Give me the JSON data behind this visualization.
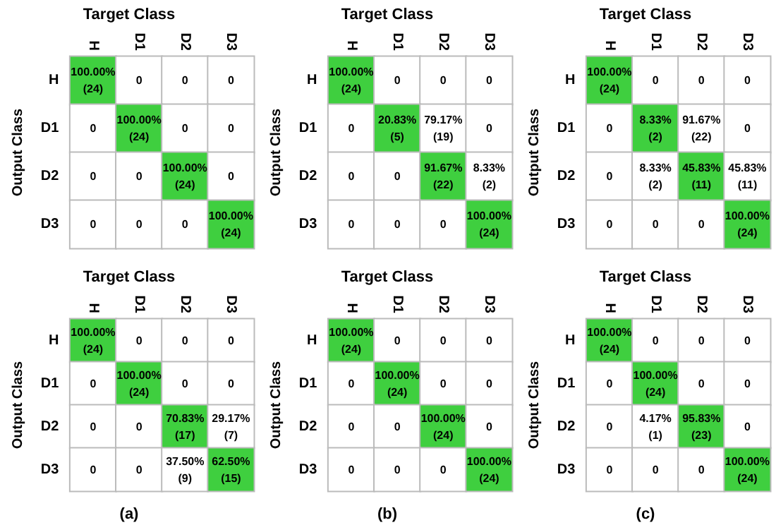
{
  "chart_data": [
    {
      "type": "heatmap",
      "title": "Target Class",
      "ylabel": "Output Class",
      "categories": [
        "H",
        "D1",
        "D2",
        "D3"
      ],
      "y_categories": [
        "H",
        "D1",
        "D2",
        "D3"
      ],
      "color": "#3fcf3f",
      "cells": [
        [
          100,
          0,
          0,
          0
        ],
        [
          0,
          100,
          0,
          0
        ],
        [
          0,
          0,
          100,
          0
        ],
        [
          0,
          0,
          0,
          100
        ]
      ],
      "cell_labels": [
        [
          "100.00%",
          "0",
          "0",
          "0"
        ],
        [
          "0",
          "100.00%",
          "0",
          "0"
        ],
        [
          "0",
          "0",
          "100.00%",
          "0"
        ],
        [
          "0",
          "0",
          "0",
          "100.00%"
        ]
      ],
      "annotations": [
        "(24)",
        "(24)",
        "(24)",
        "(24)"
      ]
    },
    {
      "type": "heatmap",
      "title": "Target Class",
      "ylabel": "Output Class",
      "categories": [
        "H",
        "D1",
        "D2",
        "D3"
      ],
      "y_categories": [
        "H",
        "D1",
        "D2",
        "D3"
      ],
      "color": "#3fcf3f",
      "cells": [
        [
          100,
          0,
          0,
          0
        ],
        [
          0,
          20.83,
          79.17,
          0
        ],
        [
          0,
          0,
          91.67,
          8.33
        ],
        [
          0,
          0,
          0,
          100
        ]
      ],
      "cell_labels": [
        [
          "100.00%",
          "0",
          "0",
          "0"
        ],
        [
          "0",
          "20.83%",
          "79.17%",
          "0"
        ],
        [
          "0",
          "0",
          "91.67%",
          "8.33%"
        ],
        [
          "0",
          "0",
          "0",
          "100.00%"
        ]
      ],
      "annotations": [
        "(24)",
        "(5)",
        "(19)",
        "(22)",
        "(2)",
        "(24)"
      ]
    },
    {
      "type": "heatmap",
      "title": "Target Class",
      "ylabel": "Output Class",
      "categories": [
        "H",
        "D1",
        "D2",
        "D3"
      ],
      "y_categories": [
        "H",
        "D1",
        "D2",
        "D3"
      ],
      "color": "#3fcf3f",
      "cells": [
        [
          100,
          0,
          0,
          0
        ],
        [
          0,
          8.33,
          91.67,
          0
        ],
        [
          0,
          8.33,
          45.83,
          45.83
        ],
        [
          0,
          0,
          0,
          100
        ]
      ],
      "cell_labels": [
        [
          "100.00%",
          "0",
          "0",
          "0"
        ],
        [
          "0",
          "8.33%",
          "91.67%",
          "0"
        ],
        [
          "0",
          "8.33%",
          "45.83%",
          "45.83%"
        ],
        [
          "0",
          "0",
          "0",
          "100.00%"
        ]
      ],
      "annotations": [
        "(24)",
        "(2)",
        "(22)",
        "(2)",
        "(11)",
        "(11)",
        "(24)"
      ]
    },
    {
      "type": "heatmap",
      "title": "Target Class",
      "ylabel": "Output Class",
      "categories": [
        "H",
        "D1",
        "D2",
        "D3"
      ],
      "y_categories": [
        "H",
        "D1",
        "D2",
        "D3"
      ],
      "color": "#3fcf3f",
      "cells": [
        [
          100,
          0,
          0,
          0
        ],
        [
          0,
          100,
          0,
          0
        ],
        [
          0,
          0,
          70.83,
          29.17
        ],
        [
          0,
          0,
          37.5,
          62.5
        ]
      ],
      "cell_labels": [
        [
          "100.00%",
          "0",
          "0",
          "0"
        ],
        [
          "0",
          "100.00%",
          "0",
          "0"
        ],
        [
          "0",
          "0",
          "70.83%",
          "29.17%"
        ],
        [
          "0",
          "0",
          "37.50%",
          "62.50%"
        ]
      ],
      "annotations": [
        "(24)",
        "(24)",
        "(17)",
        "(7)",
        "(9)",
        "(15)",
        "(a)"
      ]
    },
    {
      "type": "heatmap",
      "title": "Target Class",
      "ylabel": "Output Class",
      "categories": [
        "H",
        "D1",
        "D2",
        "D3"
      ],
      "y_categories": [
        "H",
        "D1",
        "D2",
        "D3"
      ],
      "color": "#3fcf3f",
      "cells": [
        [
          100,
          0,
          0,
          0
        ],
        [
          0,
          100,
          0,
          0
        ],
        [
          0,
          0,
          100,
          0
        ],
        [
          0,
          0,
          0,
          100
        ]
      ],
      "cell_labels": [
        [
          "100.00%",
          "0",
          "0",
          "0"
        ],
        [
          "0",
          "100.00%",
          "0",
          "0"
        ],
        [
          "0",
          "0",
          "100.00%",
          "0"
        ],
        [
          "0",
          "0",
          "0",
          "100.00%"
        ]
      ],
      "annotations": [
        "(24)",
        "(24)",
        "(24)",
        "(24)",
        "(b)"
      ]
    },
    {
      "type": "heatmap",
      "title": "Target Class",
      "ylabel": "Output Class",
      "categories": [
        "H",
        "D1",
        "D2",
        "D3"
      ],
      "y_categories": [
        "H",
        "D1",
        "D2",
        "D3"
      ],
      "color": "#3fcf3f",
      "cells": [
        [
          100,
          0,
          0,
          0
        ],
        [
          0,
          100,
          0,
          0
        ],
        [
          0,
          4.17,
          95.83,
          0
        ],
        [
          0,
          0,
          0,
          100
        ]
      ],
      "cell_labels": [
        [
          "100.00%",
          "0",
          "0",
          "0"
        ],
        [
          "0",
          "100.00%",
          "0",
          "0"
        ],
        [
          "0",
          "4.17%",
          "95.83%",
          "0"
        ],
        [
          "0",
          "0",
          "0",
          "100.00%"
        ]
      ],
      "annotations": [
        "(24)",
        "(24)",
        "(1)",
        "(23)",
        "(24)",
        "(c)"
      ]
    }
  ]
}
